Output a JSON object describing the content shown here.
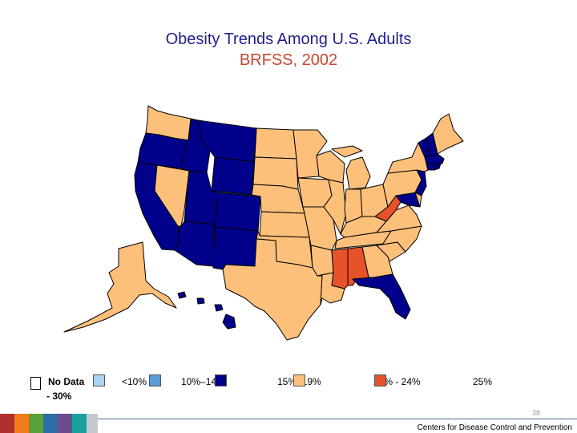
{
  "title": "Obesity Trends Among U.S. Adults",
  "subtitle": "BRFSS, 2002",
  "legend": [
    {
      "label": "No Data",
      "color": "#ffffff"
    },
    {
      "label": "<10%",
      "color": "#a8d4f5"
    },
    {
      "label": "10%–14%",
      "color": "#5b9bd5"
    },
    {
      "label": "15%–19%",
      "color": "#00008b"
    },
    {
      "label": "20% - 24%",
      "color": "#fdc07a"
    },
    {
      "label": "25%",
      "color": "#e8522a"
    }
  ],
  "legend_extra": "- 30%",
  "page_number": "38",
  "footer": "Centers for Disease Control and Prevention",
  "colors": {
    "title": "#1f1f8f",
    "subtitle": "#c8452e",
    "strip": [
      "#b03030",
      "#f07d1a",
      "#5aa03c",
      "#2a6fa8",
      "#6a4e8c",
      "#1ba0a0",
      "#c5c9cf"
    ]
  },
  "map": {
    "states": [
      {
        "name": "Washington",
        "category": "20-24"
      },
      {
        "name": "Oregon",
        "category": "15-19"
      },
      {
        "name": "California",
        "category": "15-19"
      },
      {
        "name": "Nevada",
        "category": "20-24"
      },
      {
        "name": "Idaho",
        "category": "15-19"
      },
      {
        "name": "Montana",
        "category": "15-19"
      },
      {
        "name": "Wyoming",
        "category": "15-19"
      },
      {
        "name": "Utah",
        "category": "15-19"
      },
      {
        "name": "Colorado",
        "category": "15-19"
      },
      {
        "name": "Arizona",
        "category": "15-19"
      },
      {
        "name": "New Mexico",
        "category": "15-19"
      },
      {
        "name": "Alaska",
        "category": "20-24"
      },
      {
        "name": "Hawaii",
        "category": "15-19"
      },
      {
        "name": "North Dakota",
        "category": "20-24"
      },
      {
        "name": "South Dakota",
        "category": "20-24"
      },
      {
        "name": "Nebraska",
        "category": "20-24"
      },
      {
        "name": "Kansas",
        "category": "20-24"
      },
      {
        "name": "Oklahoma",
        "category": "20-24"
      },
      {
        "name": "Texas",
        "category": "20-24"
      },
      {
        "name": "Minnesota",
        "category": "20-24"
      },
      {
        "name": "Iowa",
        "category": "20-24"
      },
      {
        "name": "Missouri",
        "category": "20-24"
      },
      {
        "name": "Arkansas",
        "category": "20-24"
      },
      {
        "name": "Louisiana",
        "category": "20-24"
      },
      {
        "name": "Wisconsin",
        "category": "20-24"
      },
      {
        "name": "Illinois",
        "category": "20-24"
      },
      {
        "name": "Michigan",
        "category": "20-24"
      },
      {
        "name": "Indiana",
        "category": "20-24"
      },
      {
        "name": "Ohio",
        "category": "20-24"
      },
      {
        "name": "Kentucky",
        "category": "20-24"
      },
      {
        "name": "Tennessee",
        "category": "20-24"
      },
      {
        "name": "Mississippi",
        "category": "25+"
      },
      {
        "name": "Alabama",
        "category": "25+"
      },
      {
        "name": "Georgia",
        "category": "20-24"
      },
      {
        "name": "Florida",
        "category": "15-19"
      },
      {
        "name": "South Carolina",
        "category": "20-24"
      },
      {
        "name": "North Carolina",
        "category": "20-24"
      },
      {
        "name": "Virginia",
        "category": "20-24"
      },
      {
        "name": "West Virginia",
        "category": "25+"
      },
      {
        "name": "Maryland",
        "category": "15-19"
      },
      {
        "name": "Delaware",
        "category": "20-24"
      },
      {
        "name": "Pennsylvania",
        "category": "20-24"
      },
      {
        "name": "New Jersey",
        "category": "15-19"
      },
      {
        "name": "New York",
        "category": "20-24"
      },
      {
        "name": "Connecticut",
        "category": "15-19"
      },
      {
        "name": "Rhode Island",
        "category": "15-19"
      },
      {
        "name": "Massachusetts",
        "category": "15-19"
      },
      {
        "name": "Vermont",
        "category": "15-19"
      },
      {
        "name": "New Hampshire",
        "category": "15-19"
      },
      {
        "name": "Maine",
        "category": "20-24"
      }
    ]
  }
}
